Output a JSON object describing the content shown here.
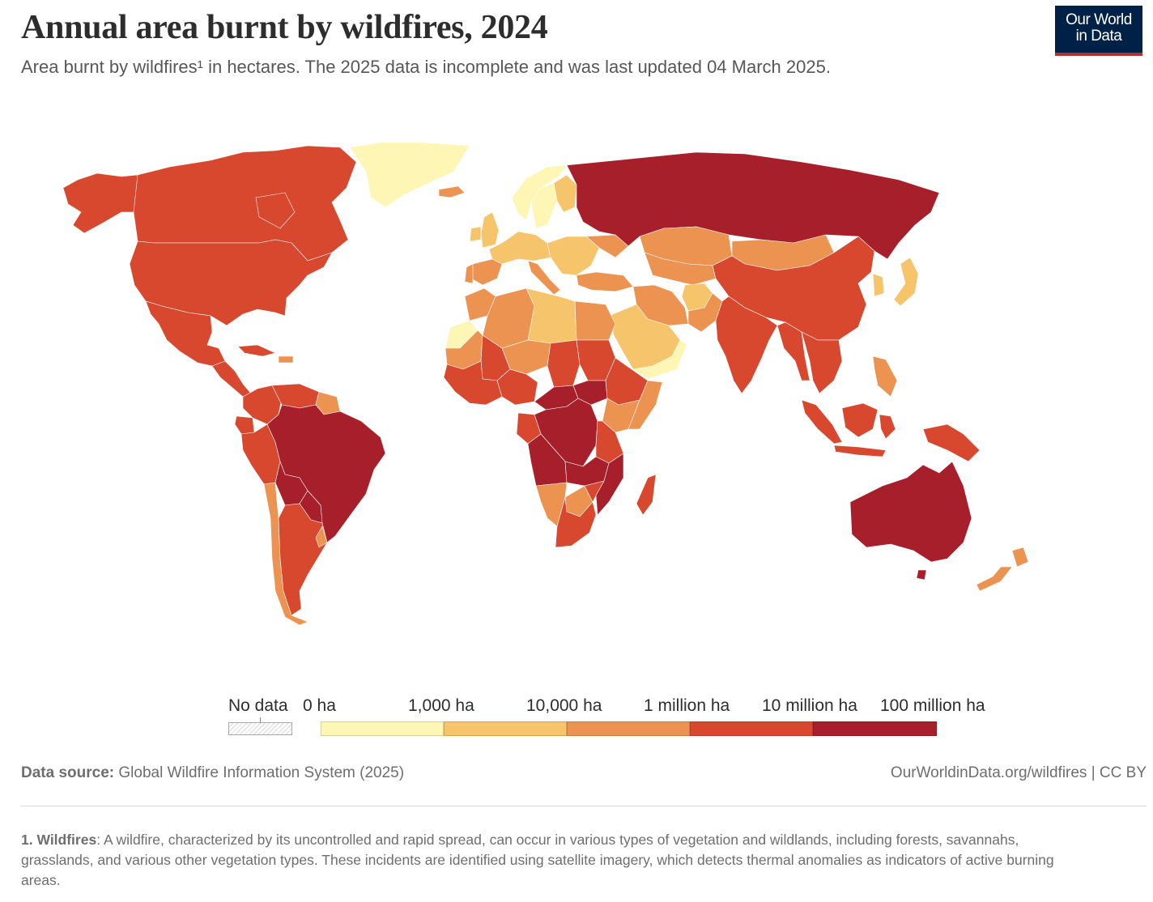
{
  "header": {
    "title": "Annual area burnt by wildfires, 2024",
    "subtitle": "Area burnt by wildfires¹ in hectares. The 2025 data is incomplete and was last updated 04 March 2025.",
    "logo_line1": "Our World",
    "logo_line2": "in Data"
  },
  "colors": {
    "bin_0_1k": "#fdf6b4",
    "bin_1k_10k": "#f6c46a",
    "bin_10k_1m": "#ec9352",
    "bin_1m_10m": "#d8482f",
    "bin_10m_100m": "#a81f2c",
    "logo_bg": "#002147",
    "logo_accent": "#b1302e"
  },
  "legend": {
    "no_data_label": "No data",
    "labels": [
      "0 ha",
      "1,000 ha",
      "10,000 ha",
      "1 million ha",
      "10 million ha",
      "100 million ha"
    ],
    "bins": [
      {
        "color": "#fdf6b4"
      },
      {
        "color": "#f6c46a"
      },
      {
        "color": "#ec9352"
      },
      {
        "color": "#d8482f"
      },
      {
        "color": "#a81f2c"
      }
    ]
  },
  "regions": [
    {
      "name": "Alaska",
      "bin": 3
    },
    {
      "name": "Canada",
      "bin": 3
    },
    {
      "name": "Greenland",
      "bin": 0
    },
    {
      "name": "United States",
      "bin": 3
    },
    {
      "name": "Mexico",
      "bin": 3
    },
    {
      "name": "Central America",
      "bin": 3
    },
    {
      "name": "Cuba",
      "bin": 3
    },
    {
      "name": "Hispaniola",
      "bin": 2
    },
    {
      "name": "Colombia",
      "bin": 3
    },
    {
      "name": "Venezuela",
      "bin": 3
    },
    {
      "name": "Guianas",
      "bin": 2
    },
    {
      "name": "Ecuador",
      "bin": 3
    },
    {
      "name": "Peru",
      "bin": 3
    },
    {
      "name": "Brazil",
      "bin": 4
    },
    {
      "name": "Bolivia",
      "bin": 4
    },
    {
      "name": "Paraguay",
      "bin": 4
    },
    {
      "name": "Chile",
      "bin": 2
    },
    {
      "name": "Argentina",
      "bin": 3
    },
    {
      "name": "Uruguay",
      "bin": 2
    },
    {
      "name": "Iceland",
      "bin": 2
    },
    {
      "name": "Norway",
      "bin": 0
    },
    {
      "name": "Sweden",
      "bin": 0
    },
    {
      "name": "Finland",
      "bin": 1
    },
    {
      "name": "United Kingdom",
      "bin": 1
    },
    {
      "name": "Ireland",
      "bin": 1
    },
    {
      "name": "Western Europe",
      "bin": 1
    },
    {
      "name": "Spain",
      "bin": 2
    },
    {
      "name": "Portugal",
      "bin": 2
    },
    {
      "name": "Italy",
      "bin": 2
    },
    {
      "name": "Eastern Europe",
      "bin": 1
    },
    {
      "name": "Ukraine",
      "bin": 2
    },
    {
      "name": "Turkey",
      "bin": 2
    },
    {
      "name": "Russia",
      "bin": 4
    },
    {
      "name": "Kazakhstan",
      "bin": 2
    },
    {
      "name": "Central Asia",
      "bin": 2
    },
    {
      "name": "Mongolia",
      "bin": 2
    },
    {
      "name": "China",
      "bin": 3
    },
    {
      "name": "Korea",
      "bin": 1
    },
    {
      "name": "Japan",
      "bin": 1
    },
    {
      "name": "Iran",
      "bin": 2
    },
    {
      "name": "Afghanistan",
      "bin": 1
    },
    {
      "name": "Pakistan",
      "bin": 2
    },
    {
      "name": "India",
      "bin": 3
    },
    {
      "name": "Myanmar",
      "bin": 3
    },
    {
      "name": "Indochina",
      "bin": 3
    },
    {
      "name": "Philippines",
      "bin": 2
    },
    {
      "name": "Sumatra",
      "bin": 3
    },
    {
      "name": "Borneo",
      "bin": 3
    },
    {
      "name": "Java",
      "bin": 3
    },
    {
      "name": "Sulawesi",
      "bin": 3
    },
    {
      "name": "New Guinea",
      "bin": 3
    },
    {
      "name": "Arabian Peninsula",
      "bin": 1
    },
    {
      "name": "Oman and Yemen",
      "bin": 0
    },
    {
      "name": "Morocco",
      "bin": 2
    },
    {
      "name": "Western Sahara",
      "bin": 0
    },
    {
      "name": "Algeria",
      "bin": 2
    },
    {
      "name": "Libya",
      "bin": 1
    },
    {
      "name": "Egypt",
      "bin": 2
    },
    {
      "name": "Mauritania",
      "bin": 2
    },
    {
      "name": "Mali",
      "bin": 3
    },
    {
      "name": "Niger",
      "bin": 2
    },
    {
      "name": "Chad",
      "bin": 3
    },
    {
      "name": "Sudan",
      "bin": 3
    },
    {
      "name": "West Africa",
      "bin": 3
    },
    {
      "name": "Nigeria",
      "bin": 3
    },
    {
      "name": "Central African Republic",
      "bin": 4
    },
    {
      "name": "South Sudan",
      "bin": 4
    },
    {
      "name": "Ethiopia",
      "bin": 3
    },
    {
      "name": "Somalia",
      "bin": 2
    },
    {
      "name": "DR Congo",
      "bin": 4
    },
    {
      "name": "Congo and Gabon",
      "bin": 3
    },
    {
      "name": "Kenya",
      "bin": 2
    },
    {
      "name": "Tanzania",
      "bin": 3
    },
    {
      "name": "Angola",
      "bin": 4
    },
    {
      "name": "Zambia",
      "bin": 4
    },
    {
      "name": "Mozambique",
      "bin": 4
    },
    {
      "name": "Namibia",
      "bin": 2
    },
    {
      "name": "Botswana",
      "bin": 2
    },
    {
      "name": "Zimbabwe",
      "bin": 3
    },
    {
      "name": "South Africa",
      "bin": 3
    },
    {
      "name": "Madagascar",
      "bin": 3
    },
    {
      "name": "Australia",
      "bin": 4
    },
    {
      "name": "Tasmania",
      "bin": 4
    },
    {
      "name": "New Zealand",
      "bin": 2
    }
  ],
  "footer": {
    "source_label": "Data source:",
    "source_text": "Global Wildfire Information System (2025)",
    "url": "OurWorldinData.org/wildfires | CC BY",
    "footnote_label": "1. Wildfires",
    "footnote_text": ": A wildfire, characterized by its uncontrolled and rapid spread, can occur in various types of vegetation and wildlands, including forests, savannahs, grasslands, and various other vegetation types. These incidents are identified using satellite imagery, which detects thermal anomalies as indicators of active burning areas."
  }
}
